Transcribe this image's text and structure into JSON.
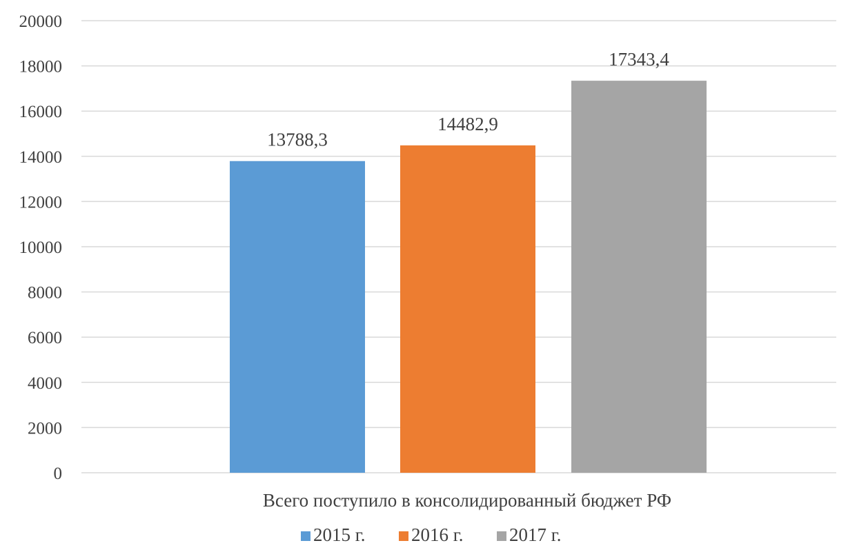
{
  "chart_data": {
    "type": "bar",
    "categories": [
      "Всего поступило в консолидированный бюджет РФ"
    ],
    "series": [
      {
        "name": "2015 г.",
        "values": [
          13788.3
        ],
        "value_label": "13788,3",
        "color": "#5b9bd5"
      },
      {
        "name": "2016 г.",
        "values": [
          14482.9
        ],
        "value_label": "14482,9",
        "color": "#ed7d31"
      },
      {
        "name": "2017 г.",
        "values": [
          17343.4
        ],
        "value_label": "17343,4",
        "color": "#a5a5a5"
      }
    ],
    "ylim": [
      0,
      20000
    ],
    "yticks": [
      0,
      2000,
      4000,
      6000,
      8000,
      10000,
      12000,
      14000,
      16000,
      18000,
      20000
    ],
    "title": "",
    "xlabel": "",
    "ylabel": "",
    "grid": true,
    "legend_position": "bottom"
  }
}
